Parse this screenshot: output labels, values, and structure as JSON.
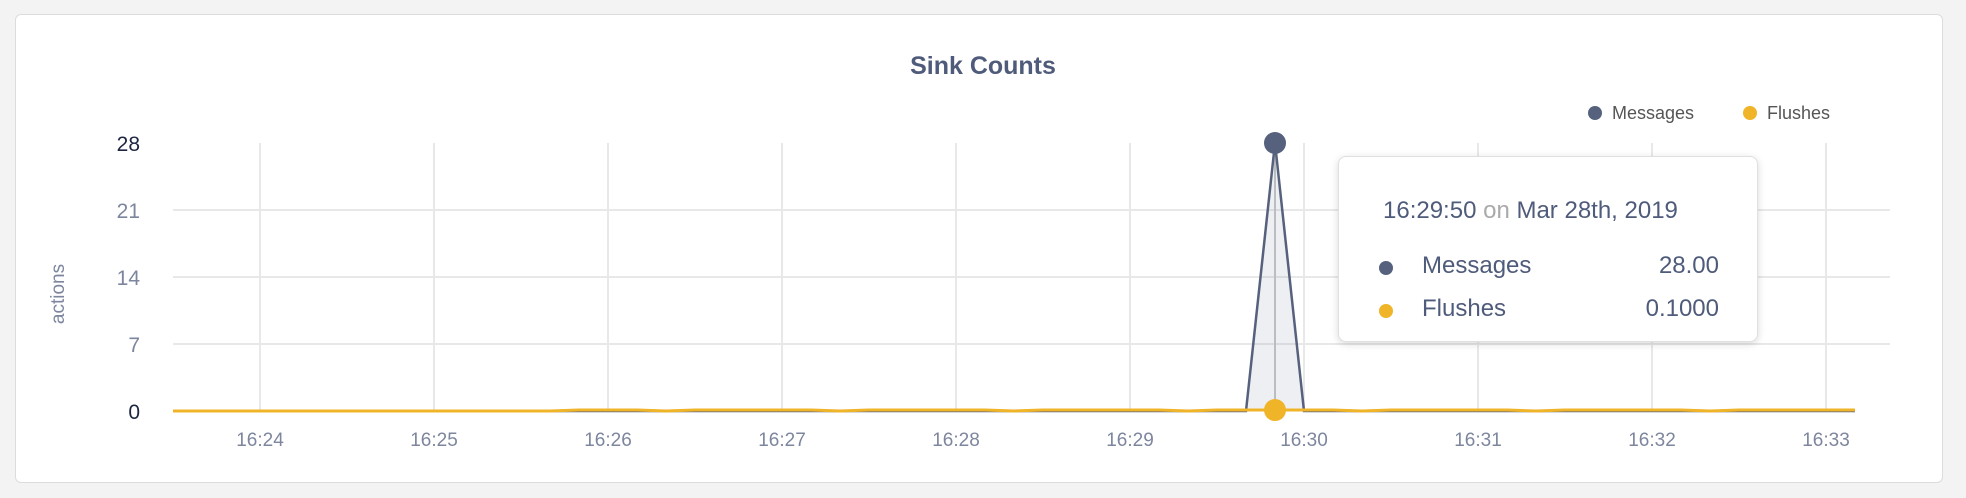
{
  "chart_data": {
    "type": "area",
    "title": "Sink Counts",
    "ylabel": "actions",
    "xlabel": "",
    "ylim": [
      0,
      28
    ],
    "yticks": [
      "0",
      "7",
      "14",
      "21",
      "28"
    ],
    "xticks": [
      "16:24",
      "16:25",
      "16:26",
      "16:27",
      "16:28",
      "16:29",
      "16:30",
      "16:31",
      "16:32",
      "16:33"
    ],
    "xrange": [
      "16:23:30",
      "16:33:10"
    ],
    "grid": true,
    "legend_position": "top-right",
    "series": [
      {
        "name": "Messages",
        "color": "#56617d",
        "points": [
          [
            "16:23:30",
            0
          ],
          [
            "16:29:40",
            0
          ],
          [
            "16:29:50",
            28
          ],
          [
            "16:30:00",
            0
          ],
          [
            "16:33:10",
            0
          ]
        ]
      },
      {
        "name": "Flushes",
        "color": "#f0b429",
        "points": [
          [
            "16:23:30",
            0
          ],
          [
            "16:25:40",
            0
          ],
          [
            "16:25:50",
            0.1
          ],
          [
            "16:26:10",
            0.1
          ],
          [
            "16:26:20",
            0
          ],
          [
            "16:26:30",
            0.1
          ],
          [
            "16:27:10",
            0.1
          ],
          [
            "16:27:20",
            0
          ],
          [
            "16:27:30",
            0.1
          ],
          [
            "16:28:10",
            0.1
          ],
          [
            "16:28:20",
            0
          ],
          [
            "16:28:30",
            0.1
          ],
          [
            "16:29:10",
            0.1
          ],
          [
            "16:29:20",
            0
          ],
          [
            "16:29:30",
            0.1
          ],
          [
            "16:30:10",
            0.1
          ],
          [
            "16:30:20",
            0
          ],
          [
            "16:30:30",
            0.1
          ],
          [
            "16:31:10",
            0.1
          ],
          [
            "16:31:20",
            0
          ],
          [
            "16:31:30",
            0.1
          ],
          [
            "16:32:10",
            0.1
          ],
          [
            "16:32:20",
            0
          ],
          [
            "16:32:30",
            0.1
          ],
          [
            "16:33:10",
            0.1
          ]
        ]
      }
    ]
  },
  "tooltip": {
    "time": "16:29:50",
    "on": "on",
    "date": "Mar 28th, 2019",
    "rows": [
      {
        "name": "Messages",
        "value": "28.00",
        "color": "#56617d"
      },
      {
        "name": "Flushes",
        "value": "0.1000",
        "color": "#f0b429"
      }
    ]
  }
}
